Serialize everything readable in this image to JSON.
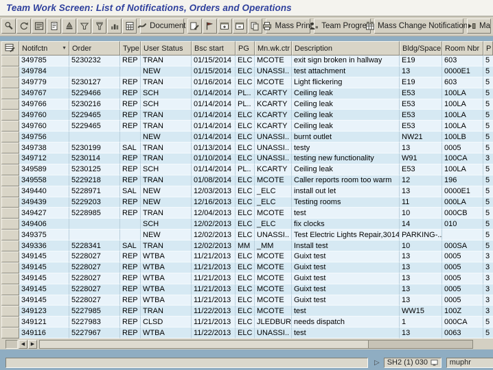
{
  "title": "Team Work Screen: List of Notifications, Orders and Operations",
  "toolbar": {
    "items": [
      {
        "icon": "details-magnifier-icon"
      },
      {
        "icon": "refresh-icon"
      },
      {
        "icon": "display-list-icon"
      },
      {
        "icon": "display-document-icon"
      },
      {
        "icon": "sort-seal-icon"
      },
      {
        "icon": "filter-wide-icon"
      },
      {
        "icon": "filter-funnel-icon"
      },
      {
        "icon": "bar-chart-icon"
      },
      {
        "icon": "calculator-icon"
      },
      {
        "icon": "document-swoosh-icon",
        "label": "Document"
      },
      {
        "icon": "edit-page-icon"
      },
      {
        "icon": "flag-icon"
      },
      {
        "icon": "expand-window-icon"
      },
      {
        "icon": "collapse-window-icon"
      },
      {
        "icon": "copy-icon"
      },
      {
        "icon": "printer-icon",
        "label": "Mass Print"
      },
      {
        "icon": "person-icon",
        "label": "Team Progress"
      },
      {
        "icon": "mass-change-grid-icon",
        "label": "Mass Change Notifications"
      },
      {
        "icon": "overflow-arrow-icon",
        "label": "Ma"
      }
    ]
  },
  "table": {
    "select_all_icon": "table-layout-icon",
    "columns": [
      {
        "label": "Notifctn",
        "sorted": true
      },
      {
        "label": "Order"
      },
      {
        "label": "Type"
      },
      {
        "label": "User Status"
      },
      {
        "label": "Bsc start"
      },
      {
        "label": "PG"
      },
      {
        "label": "Mn.wk.ctr"
      },
      {
        "label": "Description"
      },
      {
        "label": "Bldg/Space"
      },
      {
        "label": "Room Nbr"
      },
      {
        "label": "P"
      }
    ],
    "rows": [
      [
        "349785",
        "5230232",
        "REP",
        "TRAN",
        "01/15/2014",
        "ELC",
        "MCOTE",
        "exit sign broken in hallway",
        "E19",
        "603",
        "5"
      ],
      [
        "349784",
        "",
        "",
        "NEW",
        "01/15/2014",
        "ELC",
        "UNASSI..",
        "test attachment",
        "13",
        "0000E1",
        "5"
      ],
      [
        "349779",
        "5230127",
        "REP",
        "TRAN",
        "01/16/2014",
        "ELC",
        "MCOTE",
        "Light flickering",
        "E19",
        "603",
        "5"
      ],
      [
        "349767",
        "5229466",
        "REP",
        "SCH",
        "01/14/2014",
        "PL..",
        "KCARTY",
        "Ceiling leak",
        "E53",
        "100LA",
        "5"
      ],
      [
        "349766",
        "5230216",
        "REP",
        "SCH",
        "01/14/2014",
        "PL..",
        "KCARTY",
        "Ceiling leak",
        "E53",
        "100LA",
        "5"
      ],
      [
        "349760",
        "5229465",
        "REP",
        "TRAN",
        "01/14/2014",
        "ELC",
        "KCARTY",
        "Ceiling leak",
        "E53",
        "100LA",
        "5"
      ],
      [
        "349760",
        "5229465",
        "REP",
        "TRAN",
        "01/14/2014",
        "ELC",
        "KCARTY",
        "Ceiling leak",
        "E53",
        "100LA",
        "5"
      ],
      [
        "349756",
        "",
        "",
        "NEW",
        "01/14/2014",
        "ELC",
        "UNASSI..",
        "burnt outlet",
        "NW21",
        "100LB",
        "5"
      ],
      [
        "349738",
        "5230199",
        "SAL",
        "TRAN",
        "01/13/2014",
        "ELC",
        "UNASSI..",
        "testy",
        "13",
        "0005",
        "5"
      ],
      [
        "349712",
        "5230114",
        "REP",
        "TRAN",
        "01/10/2014",
        "ELC",
        "UNASSI..",
        "testing new functionality",
        "W91",
        "100CA",
        "3"
      ],
      [
        "349589",
        "5230125",
        "REP",
        "SCH",
        "01/14/2014",
        "PL..",
        "KCARTY",
        "Ceiling leak",
        "E53",
        "100LA",
        "5"
      ],
      [
        "349558",
        "5229218",
        "REP",
        "TRAN",
        "01/08/2014",
        "ELC",
        "MCOTE",
        "Caller reports room too warm",
        "12",
        "196",
        "5"
      ],
      [
        "349440",
        "5228971",
        "SAL",
        "NEW",
        "12/03/2013",
        "ELC",
        "_ELC",
        "install out let",
        "13",
        "0000E1",
        "5"
      ],
      [
        "349439",
        "5229203",
        "REP",
        "NEW",
        "12/16/2013",
        "ELC",
        "_ELC",
        "Testing rooms",
        "11",
        "000LA",
        "5"
      ],
      [
        "349427",
        "5228985",
        "REP",
        "TRAN",
        "12/04/2013",
        "ELC",
        "MCOTE",
        "test",
        "10",
        "000CB",
        "5"
      ],
      [
        "349406",
        "",
        "",
        "SCH",
        "12/02/2013",
        "ELC",
        "_ELC",
        "fix clocks",
        "14",
        "010",
        "5"
      ],
      [
        "349375",
        "",
        "",
        "NEW",
        "12/02/2013",
        "ELC",
        "UNASSI..",
        "Test Electric Lights Repair,3014",
        "PARKING-..",
        "",
        "5"
      ],
      [
        "349336",
        "5228341",
        "SAL",
        "TRAN",
        "12/02/2013",
        "MM",
        "_MM",
        "Install test",
        "10",
        "000SA",
        "5"
      ],
      [
        "349145",
        "5228027",
        "REP",
        "WTBA",
        "11/21/2013",
        "ELC",
        "MCOTE",
        "Guixt test",
        "13",
        "0005",
        "3"
      ],
      [
        "349145",
        "5228027",
        "REP",
        "WTBA",
        "11/21/2013",
        "ELC",
        "MCOTE",
        "Guixt test",
        "13",
        "0005",
        "3"
      ],
      [
        "349145",
        "5228027",
        "REP",
        "WTBA",
        "11/21/2013",
        "ELC",
        "MCOTE",
        "Guixt test",
        "13",
        "0005",
        "3"
      ],
      [
        "349145",
        "5228027",
        "REP",
        "WTBA",
        "11/21/2013",
        "ELC",
        "MCOTE",
        "Guixt test",
        "13",
        "0005",
        "3"
      ],
      [
        "349145",
        "5228027",
        "REP",
        "WTBA",
        "11/21/2013",
        "ELC",
        "MCOTE",
        "Guixt test",
        "13",
        "0005",
        "3"
      ],
      [
        "349123",
        "5227985",
        "REP",
        "TRAN",
        "11/22/2013",
        "ELC",
        "MCOTE",
        "test",
        "WW15",
        "100Z",
        "3"
      ],
      [
        "349121",
        "5227983",
        "REP",
        "CLSD",
        "11/21/2013",
        "ELC",
        "JLEDBURY",
        "needs dispatch",
        "1",
        "000CA",
        "5"
      ],
      [
        "349116",
        "5227967",
        "REP",
        "WTBA",
        "11/22/2013",
        "ELC",
        "UNASSI..",
        "test",
        "13",
        "0063",
        "5"
      ]
    ]
  },
  "scrollbar": {
    "left_arrow": "left-arrow-icon",
    "right_arrow": "right-arrow-icon"
  },
  "statusbar": {
    "message": "",
    "expander_icon": "expander-triangle-icon",
    "system": "SH2 (1) 030",
    "system_icon": "session-monitor-icon",
    "server": "muphr"
  },
  "colors": {
    "title_text": "#2e3f9c",
    "chrome": "#d4d0c3",
    "band": "#8fadc2",
    "row_light": "#e9f3fa",
    "row_dark": "#d6e9f3",
    "header_cell": "#d9d5c7"
  }
}
